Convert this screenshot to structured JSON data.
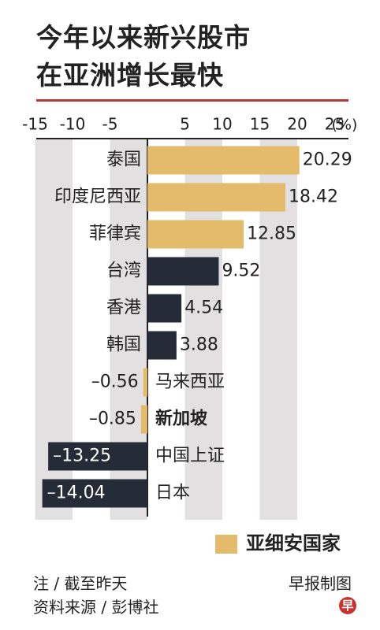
{
  "title": {
    "line1": "今年以来新兴股市",
    "line2": "在亚洲增长最快"
  },
  "chart_data": {
    "type": "bar",
    "orientation": "horizontal",
    "categories": [
      "泰国",
      "印度尼西亚",
      "菲律宾",
      "台湾",
      "香港",
      "韩国",
      "马来西亚",
      "新加坡",
      "中国上证",
      "日本"
    ],
    "values": [
      20.29,
      18.42,
      12.85,
      9.52,
      4.54,
      3.88,
      -0.56,
      -0.85,
      -13.25,
      -14.04
    ],
    "value_labels": [
      "20.29",
      "18.42",
      "12.85",
      "9.52",
      "4.54",
      "3.88",
      "–0.56",
      "–0.85",
      "–13.25",
      "–14.04"
    ],
    "is_asean": [
      true,
      true,
      true,
      false,
      false,
      false,
      true,
      true,
      false,
      false
    ],
    "bold_category": "新加坡",
    "ticks": [
      "-15",
      "-10",
      "-5",
      "5",
      "10",
      "15",
      "20",
      "25"
    ],
    "tick_values": [
      -15,
      -10,
      -5,
      5,
      10,
      15,
      20,
      25
    ],
    "unit": "(%)",
    "xlim": [
      -18,
      27
    ],
    "colors": {
      "asean": "#e3bb6b",
      "other": "#262b38",
      "stripe": "#e2e0e0",
      "axis": "#222222"
    },
    "legend": {
      "label": "亚细安国家",
      "color": "#e3bb6b"
    }
  },
  "footer": {
    "note": "注 / 截至昨天",
    "source": "资料来源 / 彭博社",
    "credit": "早报制图",
    "logo_char": "早"
  }
}
